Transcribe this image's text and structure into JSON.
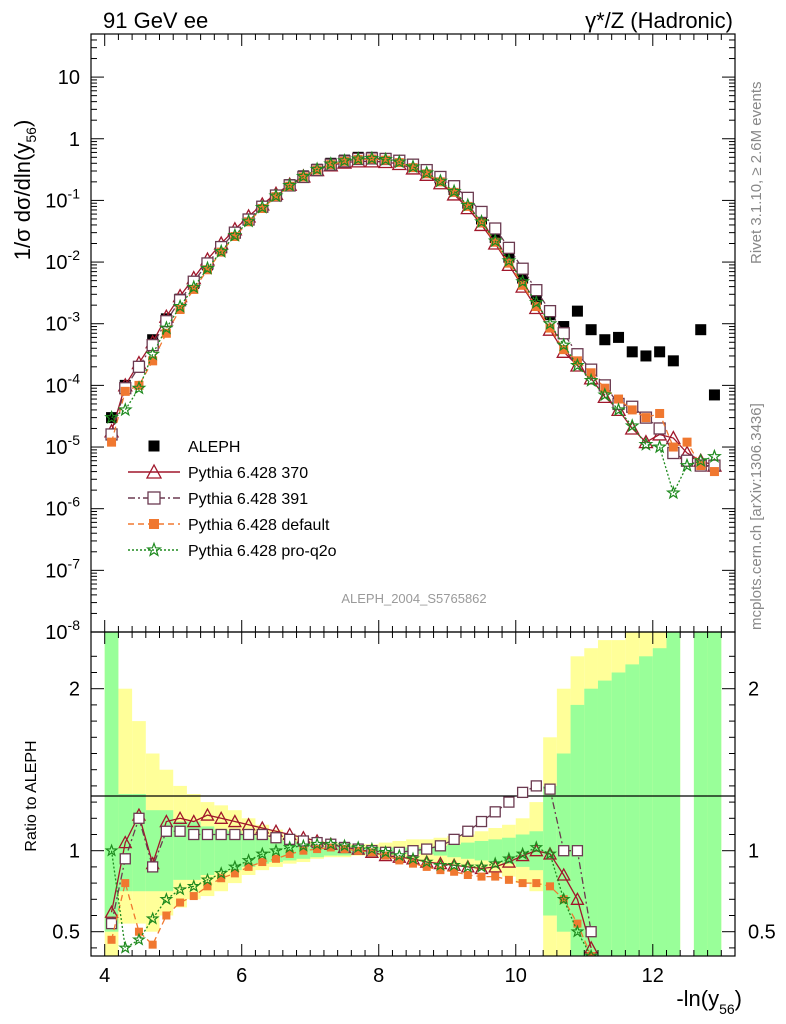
{
  "header": {
    "left": "91 GeV ee",
    "right": "γ*/Z (Hadronic)"
  },
  "side": {
    "rivet": "Rivet 3.1.10, ≥ 2.6M events",
    "mcplots": "mcplots.cern.ch [arXiv:1306.3436]"
  },
  "watermark": "ALEPH_2004_S5765862",
  "colors": {
    "data": "#000000",
    "py370": "#a0172b",
    "py391": "#6b3a50",
    "pydefault": "#f07830",
    "pyq2o": "#1e8a1e",
    "band_green": "#99ff99",
    "band_yellow": "#ffff99"
  },
  "chart_data": [
    {
      "type": "scatter",
      "panel": "main",
      "ylabel": "1/σ dσ/dln(y56)",
      "yscale": "log",
      "xlim": [
        3.8,
        13.2
      ],
      "ylim": [
        1e-08,
        50
      ],
      "yticks": [
        "10^-8",
        "10^-7",
        "10^-6",
        "10^-5",
        "10^-4",
        "10^-3",
        "10^-2",
        "10^-1",
        "1",
        "10"
      ],
      "legend_position": "bottom-left",
      "x": [
        4.1,
        4.3,
        4.5,
        4.7,
        4.9,
        5.1,
        5.3,
        5.5,
        5.7,
        5.9,
        6.1,
        6.3,
        6.5,
        6.7,
        6.9,
        7.1,
        7.3,
        7.5,
        7.7,
        7.9,
        8.1,
        8.3,
        8.5,
        8.7,
        8.9,
        9.1,
        9.3,
        9.5,
        9.7,
        9.9,
        10.1,
        10.3,
        10.5,
        10.7,
        10.9,
        11.1,
        11.3,
        11.5,
        11.7,
        11.9,
        12.1,
        12.3,
        12.5,
        12.7,
        12.9
      ],
      "series": [
        {
          "name": "ALEPH",
          "marker": "square",
          "values": [
            3e-05,
            0.0001,
            0.0002,
            0.00055,
            0.0012,
            0.0025,
            0.0045,
            0.009,
            0.017,
            0.03,
            0.05,
            0.08,
            0.12,
            0.18,
            0.25,
            0.32,
            0.4,
            0.45,
            0.5,
            0.5,
            0.48,
            0.44,
            0.37,
            0.3,
            0.22,
            0.15,
            0.09,
            0.05,
            0.025,
            0.012,
            0.0055,
            0.0025,
            0.0014,
            0.0009,
            0.0016,
            0.0008,
            0.00055,
            0.0006,
            0.00035,
            0.0003,
            0.00035,
            0.00025,
            null,
            0.0008,
            7e-05
          ]
        },
        {
          "name": "Pythia 6.428 370",
          "marker": "open-triangle",
          "values": [
            1.8e-05,
            0.0001,
            0.00023,
            0.0005,
            0.0013,
            0.0028,
            0.0055,
            0.011,
            0.02,
            0.034,
            0.055,
            0.086,
            0.128,
            0.18,
            0.245,
            0.31,
            0.37,
            0.41,
            0.43,
            0.43,
            0.42,
            0.39,
            0.33,
            0.26,
            0.19,
            0.125,
            0.075,
            0.04,
            0.02,
            0.009,
            0.004,
            0.0018,
            0.0008,
            0.00035,
            0.00021,
            0.00013,
            6.5e-05,
            4e-05,
            2e-05,
            1.2e-05,
            1.6e-05,
            1.4e-05,
            8e-06,
            6e-06,
            5e-06
          ]
        },
        {
          "name": "Pythia 6.428 391",
          "marker": "open-square",
          "values": [
            1.6e-05,
            9e-05,
            0.0002,
            0.00045,
            0.0011,
            0.0024,
            0.0048,
            0.0095,
            0.0175,
            0.03,
            0.049,
            0.079,
            0.12,
            0.175,
            0.24,
            0.31,
            0.38,
            0.43,
            0.47,
            0.48,
            0.47,
            0.44,
            0.38,
            0.31,
            0.24,
            0.17,
            0.11,
            0.065,
            0.035,
            0.017,
            0.0078,
            0.0035,
            0.0016,
            0.0007,
            0.00032,
            0.00018,
            0.0001,
            5e-05,
            4.5e-05,
            3e-05,
            2e-05,
            8e-06,
            6e-06,
            5e-06,
            5e-06
          ]
        },
        {
          "name": "Pythia 6.428 default",
          "marker": "filled-square",
          "values": [
            1.2e-05,
            8e-05,
            0.0001,
            0.00025,
            0.0007,
            0.0017,
            0.0036,
            0.0075,
            0.0145,
            0.026,
            0.045,
            0.074,
            0.115,
            0.17,
            0.24,
            0.31,
            0.38,
            0.43,
            0.46,
            0.47,
            0.45,
            0.41,
            0.34,
            0.27,
            0.2,
            0.135,
            0.08,
            0.043,
            0.021,
            0.0096,
            0.0042,
            0.0019,
            0.00085,
            0.00038,
            0.00025,
            0.00016,
            9e-05,
            6e-05,
            4e-05,
            3e-05,
            3.5e-05,
            1e-05,
            1.2e-05,
            5e-06,
            4e-06
          ]
        },
        {
          "name": "Pythia 6.428 pro-q2o",
          "marker": "star",
          "values": [
            3e-05,
            4e-05,
            9e-05,
            0.00032,
            0.00085,
            0.0019,
            0.0039,
            0.0079,
            0.0148,
            0.027,
            0.046,
            0.077,
            0.118,
            0.175,
            0.245,
            0.32,
            0.39,
            0.44,
            0.47,
            0.48,
            0.46,
            0.42,
            0.35,
            0.28,
            0.205,
            0.14,
            0.083,
            0.045,
            0.022,
            0.0105,
            0.0048,
            0.0022,
            0.001,
            0.00045,
            0.00021,
            0.00012,
            7e-05,
            4e-05,
            2.2e-05,
            1.1e-05,
            1e-05,
            1.8e-06,
            5e-06,
            6e-06,
            7e-06
          ]
        }
      ]
    },
    {
      "type": "scatter",
      "panel": "ratio",
      "xlabel": "-ln(y56)",
      "ylabel": "Ratio to ALEPH",
      "xlim": [
        3.8,
        13.2
      ],
      "ylim": [
        0.35,
        2.35
      ],
      "xticks": [
        4,
        6,
        8,
        10,
        12
      ],
      "yticks": [
        0.5,
        1,
        2
      ],
      "reference_line": 1,
      "x": [
        4.1,
        4.3,
        4.5,
        4.7,
        4.9,
        5.1,
        5.3,
        5.5,
        5.7,
        5.9,
        6.1,
        6.3,
        6.5,
        6.7,
        6.9,
        7.1,
        7.3,
        7.5,
        7.7,
        7.9,
        8.1,
        8.3,
        8.5,
        8.7,
        8.9,
        9.1,
        9.3,
        9.5,
        9.7,
        9.9,
        10.1,
        10.3,
        10.5,
        10.7,
        10.9,
        11.1
      ],
      "bands": {
        "green": [
          [
            0.5,
            2.35
          ],
          [
            0.75,
            1.35
          ],
          [
            0.75,
            1.35
          ],
          [
            0.75,
            1.25
          ],
          [
            0.75,
            1.25
          ],
          [
            0.82,
            1.18
          ],
          [
            0.82,
            1.18
          ],
          [
            0.85,
            1.15
          ],
          [
            0.87,
            1.13
          ],
          [
            0.88,
            1.12
          ],
          [
            0.9,
            1.1
          ],
          [
            0.92,
            1.08
          ],
          [
            0.93,
            1.07
          ],
          [
            0.94,
            1.06
          ],
          [
            0.95,
            1.05
          ],
          [
            0.96,
            1.04
          ],
          [
            0.97,
            1.03
          ],
          [
            0.97,
            1.03
          ],
          [
            0.98,
            1.02
          ],
          [
            0.98,
            1.02
          ],
          [
            0.98,
            1.02
          ],
          [
            0.98,
            1.02
          ],
          [
            0.98,
            1.02
          ],
          [
            0.98,
            1.02
          ],
          [
            0.97,
            1.03
          ],
          [
            0.96,
            1.04
          ],
          [
            0.95,
            1.05
          ],
          [
            0.94,
            1.06
          ],
          [
            0.93,
            1.07
          ],
          [
            0.92,
            1.08
          ],
          [
            0.9,
            1.1
          ],
          [
            0.88,
            1.12
          ],
          [
            0.6,
            1.4
          ],
          [
            0.5,
            1.6
          ],
          [
            0.35,
            1.9
          ],
          [
            0.35,
            2.0
          ],
          [
            0.35,
            2.05
          ],
          [
            0.35,
            2.1
          ],
          [
            0.35,
            2.15
          ],
          [
            0.35,
            2.2
          ],
          [
            0.35,
            2.25
          ],
          [
            0.35,
            2.35
          ],
          null,
          [
            0.35,
            2.35
          ],
          [
            0.35,
            2.35
          ]
        ],
        "yellow": [
          [
            0.35,
            2.35
          ],
          [
            0.55,
            2.0
          ],
          [
            0.55,
            1.8
          ],
          [
            0.5,
            1.6
          ],
          [
            0.6,
            1.5
          ],
          [
            0.65,
            1.4
          ],
          [
            0.7,
            1.35
          ],
          [
            0.72,
            1.3
          ],
          [
            0.75,
            1.28
          ],
          [
            0.8,
            1.25
          ],
          [
            0.85,
            1.2
          ],
          [
            0.88,
            1.16
          ],
          [
            0.9,
            1.13
          ],
          [
            0.92,
            1.1
          ],
          [
            0.93,
            1.08
          ],
          [
            0.95,
            1.06
          ],
          [
            0.96,
            1.05
          ],
          [
            0.96,
            1.04
          ],
          [
            0.97,
            1.04
          ],
          [
            0.97,
            1.04
          ],
          [
            0.96,
            1.05
          ],
          [
            0.95,
            1.06
          ],
          [
            0.94,
            1.07
          ],
          [
            0.93,
            1.07
          ],
          [
            0.92,
            1.08
          ],
          [
            0.91,
            1.09
          ],
          [
            0.9,
            1.1
          ],
          [
            0.88,
            1.12
          ],
          [
            0.86,
            1.14
          ],
          [
            0.84,
            1.16
          ],
          [
            0.8,
            1.2
          ],
          [
            0.75,
            1.3
          ],
          [
            0.35,
            1.7
          ],
          [
            0.35,
            2.0
          ],
          [
            0.35,
            2.2
          ],
          [
            0.35,
            2.25
          ],
          [
            0.35,
            2.3
          ],
          [
            0.35,
            2.3
          ],
          [
            0.35,
            2.35
          ],
          [
            0.35,
            2.35
          ],
          [
            0.35,
            2.35
          ],
          [
            0.35,
            2.35
          ],
          null,
          [
            0.35,
            2.35
          ],
          [
            0.35,
            2.35
          ]
        ]
      },
      "series": [
        {
          "name": "Pythia 6.428 370",
          "values": [
            0.62,
            1.05,
            1.22,
            0.92,
            1.18,
            1.2,
            1.18,
            1.22,
            1.2,
            1.18,
            1.16,
            1.14,
            1.12,
            1.1,
            1.08,
            1.06,
            1.04,
            1.02,
            1.01,
            0.99,
            0.97,
            0.96,
            0.95,
            0.93,
            0.92,
            0.91,
            0.9,
            0.89,
            0.9,
            0.93,
            0.97,
            1.0,
            0.98,
            0.85,
            0.7,
            0.4
          ]
        },
        {
          "name": "Pythia 6.428 391",
          "values": [
            0.55,
            0.95,
            1.2,
            0.9,
            1.12,
            1.12,
            1.1,
            1.1,
            1.1,
            1.1,
            1.1,
            1.1,
            1.08,
            1.07,
            1.06,
            1.05,
            1.04,
            1.02,
            1.01,
            1.0,
            0.99,
            0.99,
            1.0,
            1.01,
            1.03,
            1.07,
            1.12,
            1.18,
            1.24,
            1.3,
            1.36,
            1.4,
            1.38,
            1.0,
            1.0,
            0.5
          ]
        },
        {
          "name": "Pythia 6.428 default",
          "values": [
            0.45,
            0.8,
            0.5,
            0.42,
            0.6,
            0.68,
            0.72,
            0.78,
            0.83,
            0.86,
            0.9,
            0.93,
            0.95,
            0.98,
            1.0,
            1.01,
            1.02,
            1.01,
            1.0,
            0.99,
            0.97,
            0.94,
            0.92,
            0.9,
            0.88,
            0.87,
            0.85,
            0.84,
            0.84,
            0.82,
            0.8,
            0.8,
            0.78,
            0.7,
            0.55,
            0.35
          ]
        },
        {
          "name": "Pythia 6.428 pro-q2o",
          "values": [
            1.0,
            0.4,
            0.45,
            0.58,
            0.7,
            0.76,
            0.78,
            0.82,
            0.86,
            0.9,
            0.94,
            0.98,
            1.0,
            1.02,
            1.03,
            1.04,
            1.04,
            1.03,
            1.02,
            1.01,
            0.99,
            0.97,
            0.95,
            0.93,
            0.91,
            0.91,
            0.9,
            0.9,
            0.92,
            0.95,
            0.98,
            1.02,
            0.98,
            0.7,
            0.5,
            0.35
          ]
        }
      ]
    }
  ],
  "legend": [
    {
      "label": "ALEPH",
      "key": "data"
    },
    {
      "label": "Pythia 6.428 370",
      "key": "py370"
    },
    {
      "label": "Pythia 6.428 391",
      "key": "py391"
    },
    {
      "label": "Pythia 6.428 default",
      "key": "pydefault"
    },
    {
      "label": "Pythia 6.428 pro-q2o",
      "key": "pyq2o"
    }
  ]
}
